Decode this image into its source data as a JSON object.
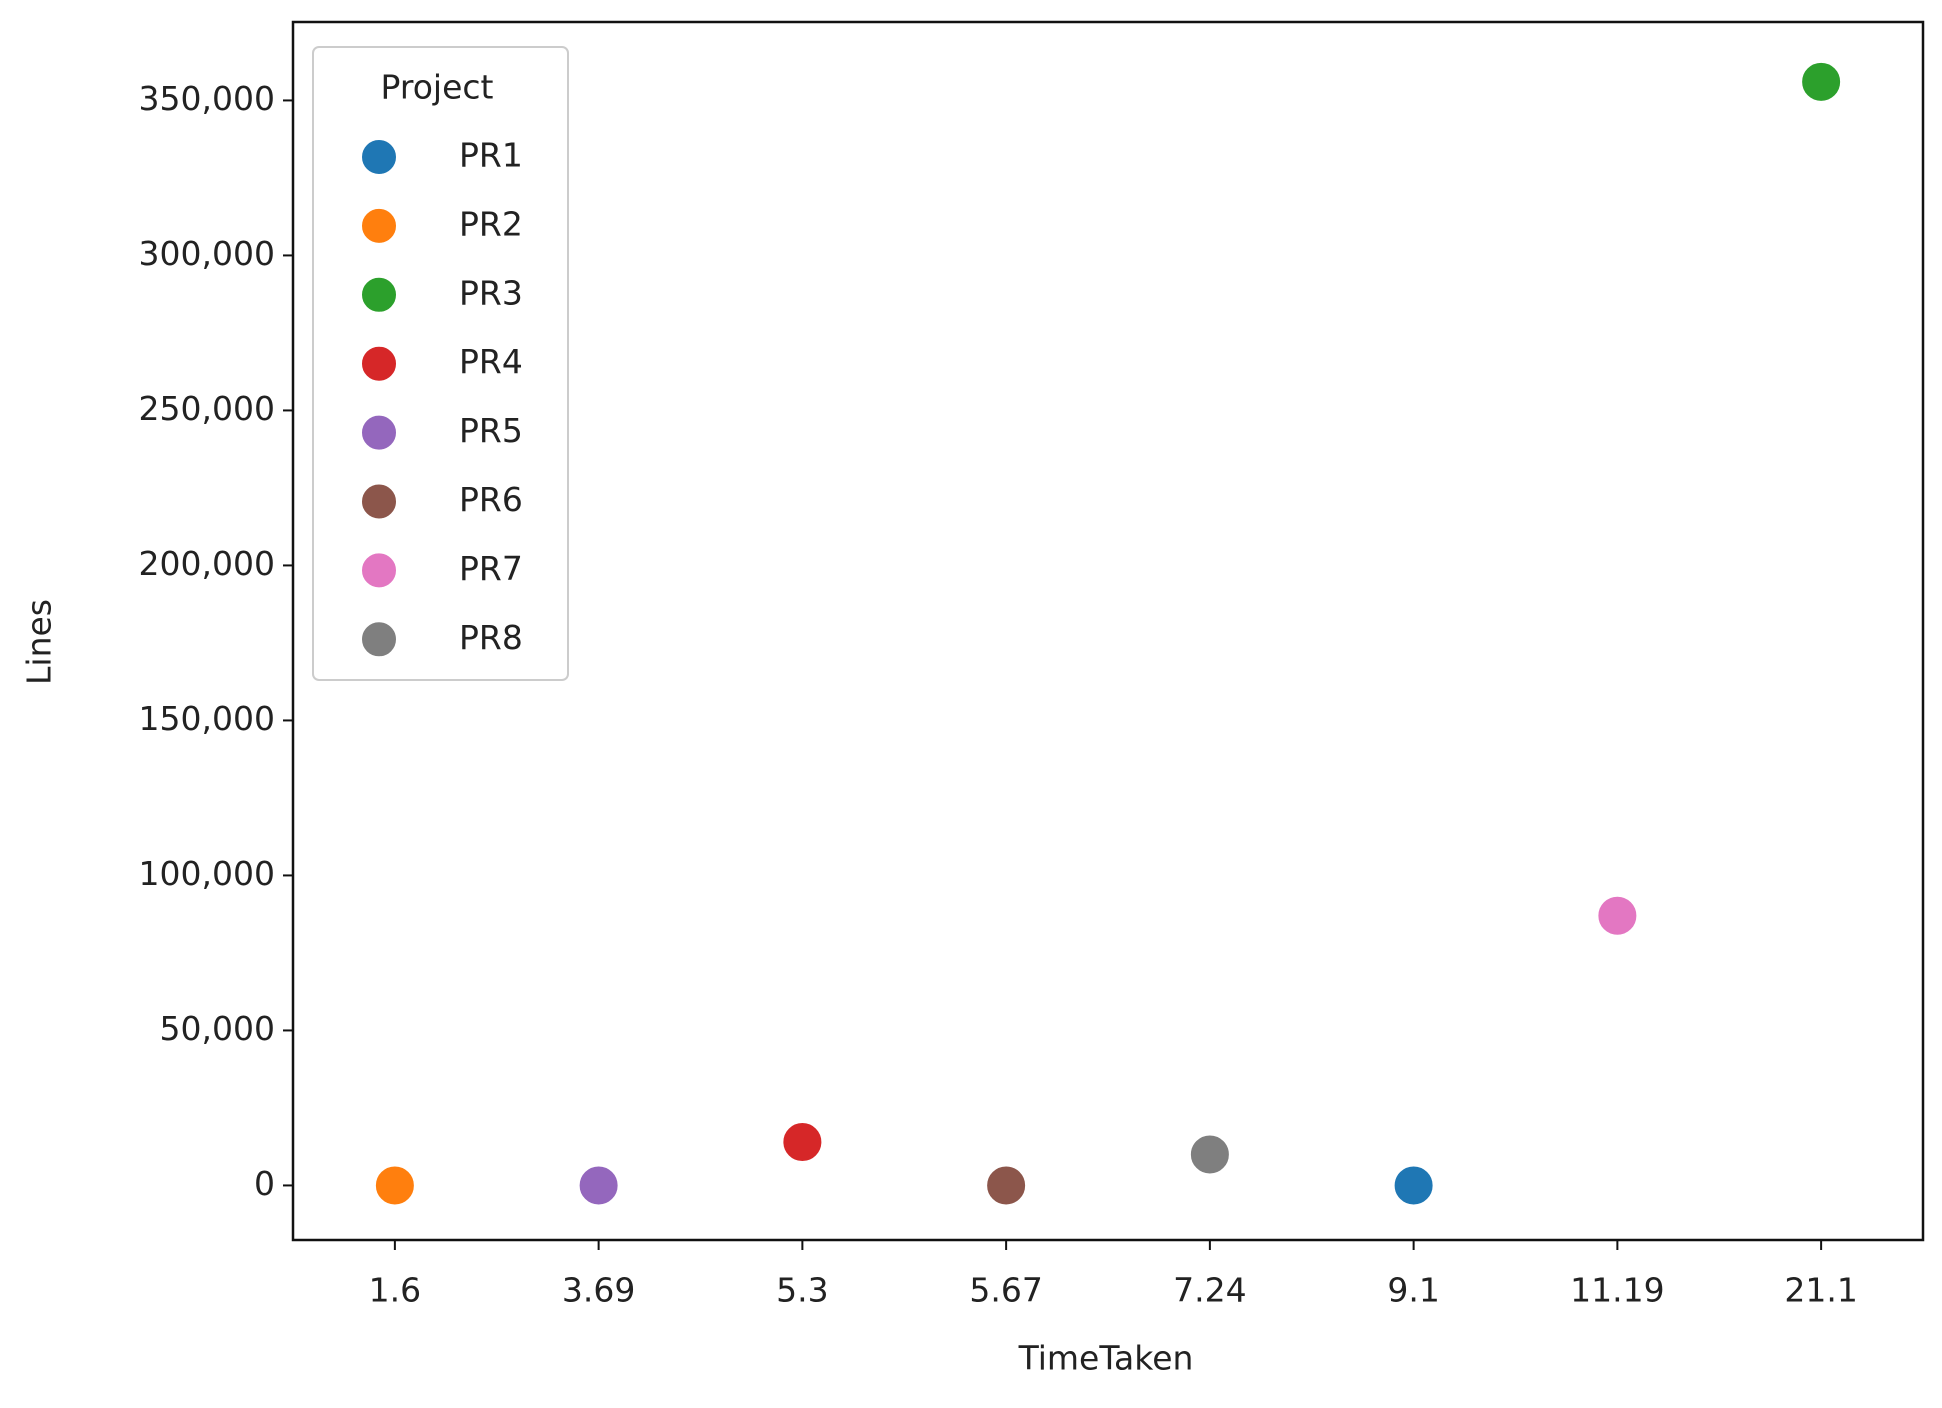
{
  "chart_data": {
    "type": "scatter",
    "x_label": "TimeTaken",
    "y_label": "Lines",
    "legend_title": "Project",
    "legend_position": "upper left",
    "categories": [
      "1.6",
      "3.69",
      "5.3",
      "5.67",
      "7.24",
      "9.1",
      "11.19",
      "21.1"
    ],
    "series": [
      {
        "name": "PR1",
        "color": "#1f77b4",
        "values": [
          null,
          null,
          null,
          null,
          null,
          0,
          null,
          null
        ]
      },
      {
        "name": "PR2",
        "color": "#ff7f0e",
        "values": [
          0,
          null,
          null,
          null,
          null,
          null,
          null,
          null
        ]
      },
      {
        "name": "PR3",
        "color": "#2ca02c",
        "values": [
          null,
          null,
          null,
          null,
          null,
          null,
          null,
          356000
        ]
      },
      {
        "name": "PR4",
        "color": "#d62728",
        "values": [
          null,
          null,
          14000,
          null,
          null,
          null,
          null,
          null
        ]
      },
      {
        "name": "PR5",
        "color": "#9467bd",
        "values": [
          null,
          0,
          null,
          null,
          null,
          null,
          null,
          null
        ]
      },
      {
        "name": "PR6",
        "color": "#8c564b",
        "values": [
          null,
          null,
          null,
          0,
          null,
          null,
          null,
          null
        ]
      },
      {
        "name": "PR7",
        "color": "#e377c2",
        "values": [
          null,
          null,
          null,
          null,
          null,
          null,
          87000,
          null
        ]
      },
      {
        "name": "PR8",
        "color": "#7f7f7f",
        "values": [
          null,
          null,
          null,
          null,
          10000,
          null,
          null,
          null
        ]
      }
    ],
    "ylim": [
      -17600,
      375300
    ],
    "yticks": [
      0,
      {
        "value": 50000,
        "label": "50,000"
      },
      {
        "value": 100000,
        "label": "100,000"
      },
      {
        "value": 150000,
        "label": "150,000"
      },
      {
        "value": 200000,
        "label": "200,000"
      },
      {
        "value": 250000,
        "label": "250,000"
      },
      {
        "value": 300000,
        "label": "300,000"
      },
      {
        "value": 350000,
        "label": "350,000"
      }
    ],
    "grid": false
  }
}
